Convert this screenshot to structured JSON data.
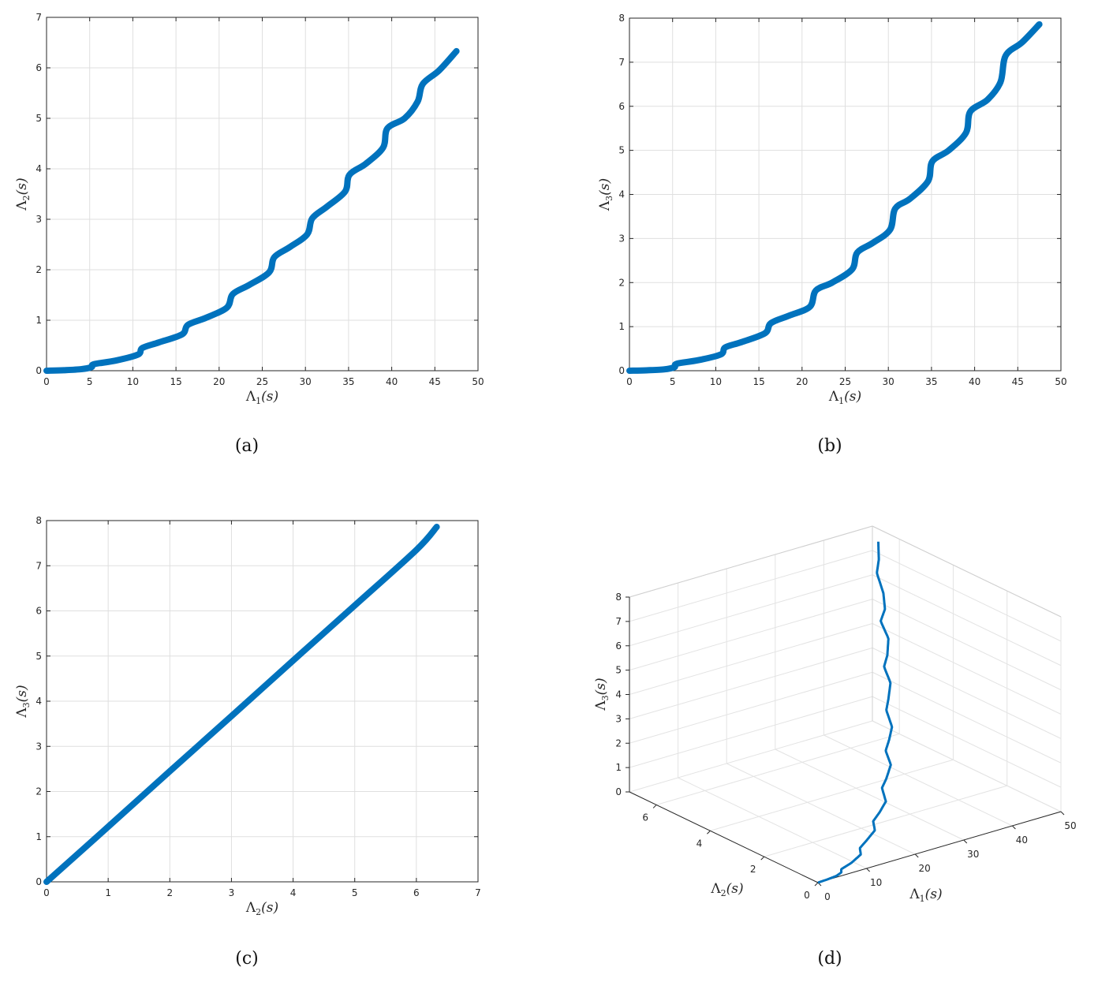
{
  "colors": {
    "line": "#0072BD",
    "grid": "#dfdfdf",
    "axis": "#262626"
  },
  "chart_data": [
    {
      "id": "a",
      "type": "line",
      "caption": "(a)",
      "xlabel_main": "Λ",
      "xlabel_sub": "1",
      "xlabel_arg": "(s)",
      "ylabel_main": "Λ",
      "ylabel_sub": "2",
      "ylabel_arg": "(s)",
      "xlim": [
        0,
        50
      ],
      "ylim": [
        0,
        7
      ],
      "xticks": [
        0,
        5,
        10,
        15,
        20,
        25,
        30,
        35,
        40,
        45,
        50
      ],
      "yticks": [
        0,
        1,
        2,
        3,
        4,
        5,
        6,
        7
      ],
      "grid": true,
      "series": [
        {
          "x": [
            0,
            2,
            4,
            5.2,
            5.5,
            8,
            10.6,
            11.1,
            13,
            15.7,
            16.4,
            18.5,
            20.9,
            21.6,
            23.5,
            25.8,
            26.4,
            28.2,
            30.2,
            30.8,
            32.5,
            34.6,
            35.1,
            37,
            39.0,
            39.5,
            41.5,
            43.0,
            43.6,
            45.5,
            47.5
          ],
          "y": [
            0,
            0.01,
            0.03,
            0.07,
            0.13,
            0.2,
            0.32,
            0.45,
            0.56,
            0.72,
            0.91,
            1.05,
            1.25,
            1.52,
            1.7,
            1.95,
            2.25,
            2.45,
            2.7,
            3.02,
            3.25,
            3.55,
            3.88,
            4.1,
            4.42,
            4.8,
            5.0,
            5.33,
            5.68,
            5.95,
            6.33
          ]
        }
      ]
    },
    {
      "id": "b",
      "type": "line",
      "caption": "(b)",
      "xlabel_main": "Λ",
      "xlabel_sub": "1",
      "xlabel_arg": "(s)",
      "ylabel_main": "Λ",
      "ylabel_sub": "3",
      "ylabel_arg": "(s)",
      "xlim": [
        0,
        50
      ],
      "ylim": [
        0,
        8
      ],
      "xticks": [
        0,
        5,
        10,
        15,
        20,
        25,
        30,
        35,
        40,
        45,
        50
      ],
      "yticks": [
        0,
        1,
        2,
        3,
        4,
        5,
        6,
        7,
        8
      ],
      "grid": true,
      "series": [
        {
          "x": [
            0,
            2,
            4,
            5.2,
            5.5,
            8,
            10.6,
            11.1,
            13,
            15.7,
            16.4,
            18.5,
            20.9,
            21.6,
            23.5,
            25.8,
            26.4,
            28.2,
            30.2,
            30.8,
            32.5,
            34.6,
            35.1,
            37,
            39.0,
            39.5,
            41.5,
            43.0,
            43.6,
            45.5,
            47.5
          ],
          "y": [
            0,
            0.01,
            0.03,
            0.08,
            0.16,
            0.24,
            0.37,
            0.53,
            0.65,
            0.85,
            1.08,
            1.25,
            1.45,
            1.82,
            2.0,
            2.3,
            2.68,
            2.9,
            3.2,
            3.68,
            3.9,
            4.3,
            4.75,
            5.0,
            5.4,
            5.88,
            6.15,
            6.55,
            7.15,
            7.45,
            7.86
          ]
        }
      ]
    },
    {
      "id": "c",
      "type": "line",
      "caption": "(c)",
      "xlabel_main": "Λ",
      "xlabel_sub": "2",
      "xlabel_arg": "(s)",
      "ylabel_main": "Λ",
      "ylabel_sub": "3",
      "ylabel_arg": "(s)",
      "xlim": [
        0,
        7
      ],
      "ylim": [
        0,
        8
      ],
      "xticks": [
        0,
        1,
        2,
        3,
        4,
        5,
        6,
        7
      ],
      "yticks": [
        0,
        1,
        2,
        3,
        4,
        5,
        6,
        7,
        8
      ],
      "grid": true,
      "series": [
        {
          "x": [
            0,
            1,
            2,
            3,
            4,
            5,
            6,
            6.33
          ],
          "y": [
            0,
            1.22,
            2.45,
            3.67,
            4.9,
            6.12,
            7.35,
            7.86
          ]
        }
      ]
    },
    {
      "id": "d",
      "type": "line3d",
      "caption": "(d)",
      "xlabel_main": "Λ",
      "xlabel_sub": "1",
      "xlabel_arg": "(s)",
      "ylabel_main": "Λ",
      "ylabel_sub": "2",
      "ylabel_arg": "(s)",
      "zlabel_main": "Λ",
      "zlabel_sub": "3",
      "zlabel_arg": "(s)",
      "xlim": [
        0,
        50
      ],
      "ylim": [
        0,
        7
      ],
      "zlim": [
        0,
        8
      ],
      "xticks": [
        0,
        10,
        20,
        30,
        40,
        50
      ],
      "yticks": [
        0,
        2,
        4,
        6
      ],
      "zticks": [
        0,
        1,
        2,
        3,
        4,
        5,
        6,
        7,
        8
      ],
      "grid": true
    }
  ]
}
